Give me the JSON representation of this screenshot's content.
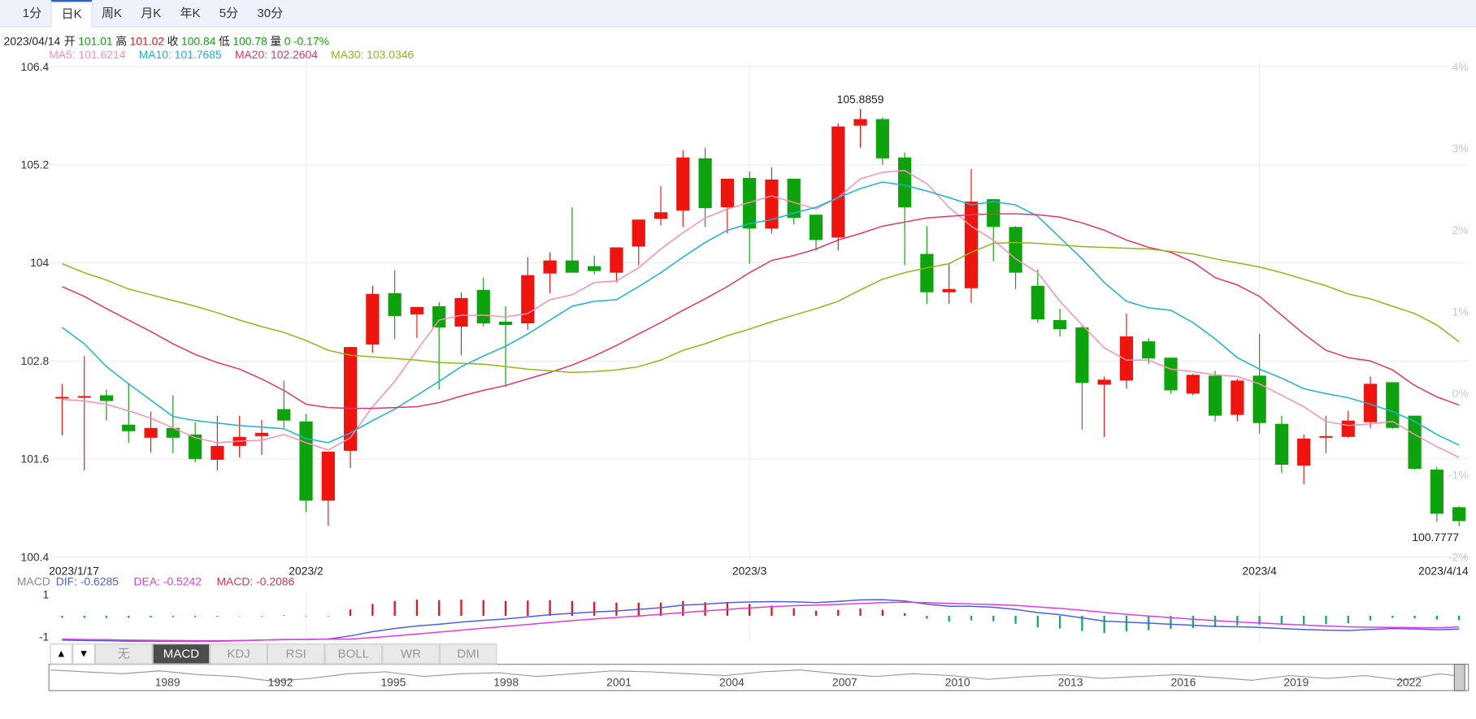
{
  "tabs": [
    "1分",
    "日K",
    "周K",
    "月K",
    "年K",
    "5分",
    "30分"
  ],
  "info": {
    "date": "2023/04/14",
    "items": [
      {
        "label": "开",
        "value": 101.01,
        "color": "#11a011"
      },
      {
        "label": "高",
        "value": 101.02,
        "color": "#e8141b"
      },
      {
        "label": "收",
        "value": 100.84,
        "color": "#11a011"
      },
      {
        "label": "低",
        "value": 100.78,
        "color": "#11a011"
      },
      {
        "label": "量",
        "value": 0,
        "color": "#11a011"
      }
    ],
    "change": "-0.17%",
    "change_color": "#11a011"
  },
  "chart_data": [
    {
      "type": "candlestick",
      "categories": [
        "2023/1/17",
        null,
        null,
        null,
        null,
        null,
        null,
        null,
        null,
        null,
        null,
        "2023/2",
        null,
        null,
        null,
        null,
        null,
        null,
        null,
        null,
        null,
        null,
        null,
        null,
        null,
        null,
        null,
        null,
        null,
        null,
        null,
        "2023/3",
        null,
        null,
        null,
        null,
        null,
        null,
        null,
        null,
        null,
        null,
        null,
        null,
        null,
        null,
        null,
        null,
        null,
        null,
        null,
        null,
        null,
        null,
        "2023/4",
        null,
        null,
        null,
        null,
        null,
        null,
        null,
        null,
        "2023/4/14"
      ],
      "open": [
        102.34,
        102.35,
        102.38,
        102.02,
        101.86,
        101.98,
        101.9,
        101.59,
        101.76,
        101.88,
        102.21,
        102.06,
        101.09,
        101.7,
        103.0,
        103.63,
        103.37,
        103.47,
        103.22,
        103.67,
        103.28,
        103.26,
        103.87,
        104.03,
        103.96,
        103.88,
        104.2,
        104.54,
        104.64,
        105.28,
        104.68,
        105.04,
        104.42,
        105.03,
        104.59,
        104.31,
        105.68,
        105.76,
        105.29,
        104.11,
        103.64,
        103.69,
        104.78,
        104.44,
        103.72,
        103.3,
        103.21,
        102.51,
        102.56,
        103.04,
        102.84,
        102.4,
        102.62,
        102.14,
        102.62,
        102.03,
        101.52,
        101.86,
        101.87,
        102.05,
        102.54,
        102.13,
        101.47,
        101.01
      ],
      "high": [
        102.52,
        102.86,
        102.45,
        102.53,
        102.18,
        102.38,
        102.05,
        102.13,
        102.13,
        102.08,
        102.56,
        102.15,
        101.69,
        102.97,
        103.72,
        103.91,
        103.46,
        103.52,
        103.64,
        103.82,
        103.47,
        104.07,
        104.13,
        104.68,
        104.09,
        104.19,
        104.53,
        104.94,
        105.38,
        105.41,
        105.03,
        105.12,
        105.17,
        105.03,
        104.59,
        105.71,
        105.8859,
        105.78,
        105.35,
        104.45,
        103.99,
        105.15,
        104.78,
        104.45,
        103.92,
        103.44,
        103.23,
        102.61,
        103.38,
        103.08,
        102.84,
        102.64,
        102.68,
        102.58,
        103.13,
        102.13,
        101.9,
        102.13,
        102.19,
        102.61,
        102.54,
        102.13,
        101.5,
        101.02
      ],
      "low": [
        101.89,
        101.46,
        102.07,
        101.8,
        101.68,
        101.67,
        101.56,
        101.46,
        101.62,
        101.65,
        101.98,
        100.95,
        100.78,
        101.49,
        102.9,
        103.07,
        103.08,
        102.45,
        102.87,
        103.22,
        102.48,
        103.18,
        103.63,
        103.88,
        103.86,
        103.76,
        103.97,
        104.46,
        104.44,
        104.44,
        104.36,
        103.99,
        104.36,
        104.47,
        104.15,
        104.15,
        105.41,
        105.2,
        103.97,
        103.5,
        103.5,
        103.51,
        104.02,
        103.68,
        103.27,
        103.1,
        101.96,
        101.87,
        102.46,
        102.76,
        102.4,
        102.38,
        102.06,
        102.06,
        101.91,
        101.43,
        101.29,
        101.67,
        101.86,
        101.98,
        101.97,
        101.47,
        100.83,
        100.7777
      ],
      "close": [
        102.36,
        102.37,
        102.31,
        101.94,
        101.98,
        101.86,
        101.6,
        101.76,
        101.87,
        101.92,
        102.07,
        101.09,
        101.69,
        102.97,
        103.62,
        103.35,
        103.46,
        103.21,
        103.57,
        103.26,
        103.24,
        103.85,
        104.03,
        103.88,
        103.9,
        104.19,
        104.53,
        104.62,
        105.29,
        104.67,
        105.03,
        104.42,
        105.02,
        104.55,
        104.28,
        105.67,
        105.76,
        105.28,
        104.68,
        103.64,
        103.68,
        104.75,
        104.44,
        103.88,
        103.31,
        103.19,
        102.53,
        102.57,
        103.1,
        102.83,
        102.44,
        102.63,
        102.13,
        102.56,
        102.04,
        101.53,
        101.85,
        101.88,
        102.07,
        102.52,
        101.98,
        101.48,
        100.93,
        100.84
      ],
      "up_color": "#f0140f",
      "down_color": "#0da30d",
      "ylim": [
        100.4,
        106.4
      ],
      "yticks": [
        100.4,
        101.6,
        102.8,
        104,
        105.2,
        106.4
      ],
      "y2lim": [
        -2,
        4
      ],
      "y2ticks": [
        {
          "value": -2,
          "label": "-2%"
        },
        {
          "value": -1,
          "label": "-1%"
        },
        {
          "value": 0,
          "label": "0%"
        },
        {
          "value": 1,
          "label": "1%"
        },
        {
          "value": 2,
          "label": "2%"
        },
        {
          "value": 3,
          "label": "3%"
        },
        {
          "value": 4,
          "label": "4%"
        }
      ],
      "grid": true,
      "series": [
        {
          "name": "MA5: 101.6214",
          "color": "#ff8db5",
          "values": [
            102.33,
            102.31,
            102.27,
            102.19,
            102.1,
            101.98,
            101.86,
            101.8,
            101.82,
            101.83,
            101.9,
            101.8,
            101.71,
            101.86,
            102.24,
            102.55,
            102.93,
            103.3,
            103.36,
            103.36,
            103.34,
            103.38,
            103.55,
            103.61,
            103.76,
            103.78,
            103.94,
            104.17,
            104.37,
            104.55,
            104.66,
            104.74,
            104.82,
            104.74,
            104.66,
            104.8,
            105.03,
            105.11,
            105.13,
            104.97,
            104.68,
            104.45,
            104.28,
            104.05,
            103.88,
            103.53,
            103.24,
            102.96,
            102.81,
            102.81,
            102.7,
            102.67,
            102.63,
            102.61,
            102.52,
            102.38,
            102.24,
            102.06,
            102.01,
            102.03,
            102.06,
            101.9,
            101.75,
            101.6214
          ]
        },
        {
          "name": "MA10: 101.7685",
          "color": "#19b3d6",
          "values": [
            103.21,
            103.01,
            102.73,
            102.52,
            102.32,
            102.12,
            102.07,
            102.04,
            102.01,
            101.99,
            101.97,
            101.85,
            101.8,
            101.92,
            102.07,
            102.21,
            102.38,
            102.55,
            102.73,
            102.86,
            102.98,
            103.13,
            103.3,
            103.47,
            103.53,
            103.55,
            103.71,
            103.88,
            104.07,
            104.25,
            104.4,
            104.48,
            104.53,
            104.61,
            104.68,
            104.8,
            104.91,
            104.99,
            104.95,
            104.88,
            104.8,
            104.71,
            104.75,
            104.71,
            104.57,
            104.31,
            104.05,
            103.76,
            103.53,
            103.45,
            103.42,
            103.27,
            103.07,
            102.84,
            102.7,
            102.59,
            102.46,
            102.4,
            102.35,
            102.27,
            102.18,
            102.06,
            101.9,
            101.7685
          ]
        },
        {
          "name": "MA20: 102.2604",
          "color": "#e8336b",
          "values": [
            103.71,
            103.59,
            103.44,
            103.3,
            103.16,
            103.01,
            102.88,
            102.78,
            102.7,
            102.58,
            102.44,
            102.27,
            102.23,
            102.22,
            102.22,
            102.23,
            102.24,
            102.29,
            102.37,
            102.44,
            102.5,
            102.58,
            102.66,
            102.75,
            102.86,
            102.99,
            103.13,
            103.27,
            103.42,
            103.56,
            103.71,
            103.88,
            104.03,
            104.09,
            104.17,
            104.28,
            104.36,
            104.45,
            104.5,
            104.55,
            104.57,
            104.59,
            104.6,
            104.6,
            104.59,
            104.56,
            104.49,
            104.4,
            104.28,
            104.19,
            104.13,
            104.01,
            103.82,
            103.73,
            103.59,
            103.36,
            103.13,
            102.93,
            102.84,
            102.8,
            102.69,
            102.5,
            102.36,
            102.2604
          ]
        },
        {
          "name": "MA30: 103.0346",
          "color": "#94b515",
          "values": [
            103.99,
            103.88,
            103.79,
            103.68,
            103.61,
            103.54,
            103.47,
            103.39,
            103.3,
            103.22,
            103.15,
            103.05,
            102.93,
            102.87,
            102.85,
            102.83,
            102.81,
            102.78,
            102.77,
            102.76,
            102.73,
            102.7,
            102.68,
            102.66,
            102.67,
            102.69,
            102.73,
            102.81,
            102.93,
            103.01,
            103.11,
            103.19,
            103.28,
            103.36,
            103.44,
            103.53,
            103.67,
            103.8,
            103.88,
            103.94,
            103.99,
            104.13,
            104.24,
            104.25,
            104.24,
            104.22,
            104.2,
            104.19,
            104.18,
            104.17,
            104.14,
            104.11,
            104.05,
            104.0,
            103.95,
            103.88,
            103.8,
            103.72,
            103.62,
            103.56,
            103.47,
            103.38,
            103.24,
            103.0346
          ]
        }
      ]
    },
    {
      "type": "macd",
      "title": "MACD",
      "ylim": [
        -1.27,
        1.22
      ],
      "yticks": [
        -1,
        1
      ],
      "series": [
        {
          "name": "DIF: -0.6285",
          "color": "#4a5fe6",
          "values": [
            -1.15,
            -1.17,
            -1.18,
            -1.2,
            -1.2,
            -1.2,
            -1.21,
            -1.2,
            -1.18,
            -1.15,
            -1.12,
            -1.12,
            -1.1,
            -0.95,
            -0.75,
            -0.6,
            -0.48,
            -0.4,
            -0.3,
            -0.22,
            -0.15,
            -0.05,
            0.05,
            0.12,
            0.18,
            0.23,
            0.3,
            0.38,
            0.5,
            0.55,
            0.62,
            0.65,
            0.67,
            0.66,
            0.62,
            0.68,
            0.75,
            0.76,
            0.7,
            0.55,
            0.45,
            0.45,
            0.4,
            0.3,
            0.15,
            0.05,
            -0.1,
            -0.25,
            -0.3,
            -0.35,
            -0.4,
            -0.45,
            -0.5,
            -0.52,
            -0.55,
            -0.6,
            -0.65,
            -0.68,
            -0.7,
            -0.65,
            -0.6,
            -0.62,
            -0.66,
            -0.6285
          ]
        },
        {
          "name": "DEA: -0.5242",
          "color": "#e23be6",
          "values": [
            -1.1,
            -1.12,
            -1.13,
            -1.15,
            -1.16,
            -1.17,
            -1.18,
            -1.18,
            -1.17,
            -1.15,
            -1.13,
            -1.12,
            -1.1,
            -1.1,
            -1.03,
            -0.95,
            -0.86,
            -0.77,
            -0.68,
            -0.59,
            -0.5,
            -0.41,
            -0.32,
            -0.23,
            -0.15,
            -0.08,
            -0.01,
            0.07,
            0.15,
            0.23,
            0.3,
            0.37,
            0.43,
            0.48,
            0.5,
            0.54,
            0.58,
            0.62,
            0.64,
            0.62,
            0.59,
            0.56,
            0.53,
            0.49,
            0.42,
            0.35,
            0.26,
            0.16,
            0.07,
            -0.01,
            -0.09,
            -0.16,
            -0.23,
            -0.29,
            -0.34,
            -0.39,
            -0.44,
            -0.48,
            -0.52,
            -0.54,
            -0.55,
            -0.56,
            -0.57,
            -0.5242
          ]
        }
      ],
      "histogram": {
        "name": "MACD: -0.2086",
        "color": "#d9363e",
        "up_color": "#e8141b",
        "down_color": "#14a87a",
        "values": [
          -0.1,
          -0.1,
          -0.1,
          -0.1,
          -0.08,
          -0.06,
          -0.06,
          -0.04,
          -0.02,
          0,
          0.02,
          0,
          0,
          0.3,
          0.56,
          0.7,
          0.76,
          0.74,
          0.76,
          0.74,
          0.7,
          0.72,
          0.74,
          0.7,
          0.66,
          0.62,
          0.62,
          0.62,
          0.7,
          0.64,
          0.64,
          0.56,
          0.48,
          0.36,
          0.24,
          0.28,
          0.34,
          0.28,
          0.12,
          -0.14,
          -0.28,
          -0.22,
          -0.26,
          -0.38,
          -0.54,
          -0.6,
          -0.72,
          -0.82,
          -0.74,
          -0.68,
          -0.62,
          -0.58,
          -0.54,
          -0.46,
          -0.42,
          -0.42,
          -0.42,
          -0.4,
          -0.36,
          -0.22,
          -0.1,
          -0.12,
          -0.18,
          -0.2086
        ]
      }
    }
  ],
  "indicator_arrows": [
    "▲",
    "▼"
  ],
  "indicator_tabs": [
    "无",
    "MACD",
    "KDJ",
    "RSI",
    "BOLL",
    "WR",
    "DMI"
  ],
  "navigator_years": [
    "1989",
    "1992",
    "1995",
    "1998",
    "2001",
    "2004",
    "2007",
    "2010",
    "2013",
    "2016",
    "2019",
    "2022"
  ]
}
